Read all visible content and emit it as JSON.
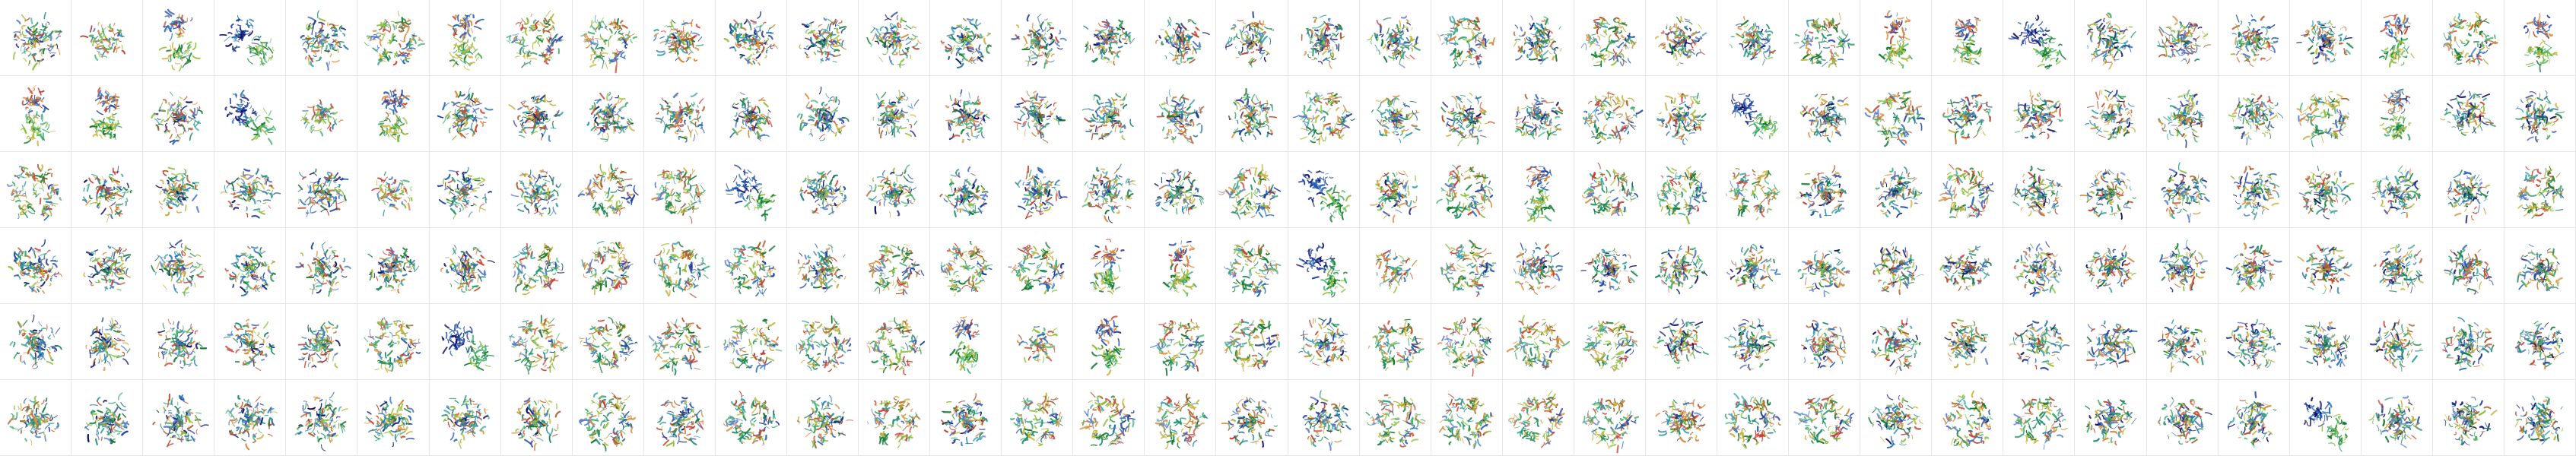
{
  "grid": {
    "rows": 6,
    "cols": 36,
    "label_text": "",
    "palette": [
      "#1f3f9f",
      "#2a6fb8",
      "#1c8c6a",
      "#3fb06f",
      "#8fbf3a",
      "#c8b23c",
      "#d9893a",
      "#c6402f",
      "#127a2f",
      "#5a7ad0",
      "#2f9fa6",
      "#b05a2a",
      "#10106a"
    ],
    "tile_kinds": [
      "mixed",
      "compact",
      "tall",
      "wing",
      "mixed",
      "ring6",
      "tall",
      "ring6",
      "ring6",
      "mixed",
      "mixed",
      "mixed",
      "mixed",
      "mixed",
      "mixed",
      "mixed",
      "mixed",
      "mixed",
      "mixed",
      "mixed",
      "ring6",
      "mixed",
      "ring6",
      "mixed",
      "mixed",
      "ring6",
      "tall",
      "tall",
      "wing",
      "mixed",
      "mixed",
      "mixed",
      "mixed",
      "tall",
      "ring6",
      "tall",
      "tall",
      "tall",
      "mixed",
      "wing",
      "compact",
      "tall",
      "mixed",
      "mixed",
      "mixed",
      "mixed",
      "mixed",
      "mixed",
      "mixed",
      "mixed",
      "mixed",
      "mixed",
      "mixed",
      "mixed",
      "ring6",
      "mixed",
      "mixed",
      "mixed",
      "ring6",
      "mixed",
      "wing",
      "mixed",
      "ring6",
      "mixed",
      "mixed",
      "mixed",
      "mixed",
      "mixed",
      "ring6",
      "tall",
      "mixed",
      "mixed",
      "ring6",
      "mixed",
      "mixed",
      "mixed",
      "mixed",
      "compact",
      "mixed",
      "mixed",
      "ring6",
      "ring6",
      "wing",
      "mixed",
      "mixed",
      "mixed",
      "mixed",
      "mixed",
      "mixed",
      "ring6",
      "wing",
      "mixed",
      "ring6",
      "tall",
      "ring6",
      "ring6",
      "ring6",
      "mixed",
      "mixed",
      "ring6",
      "mixed",
      "mixed",
      "mixed",
      "mixed",
      "mixed",
      "mixed",
      "mixed",
      "ring6",
      "mixed",
      "mixed",
      "mixed",
      "mixed",
      "mixed",
      "mixed",
      "mixed",
      "ring6",
      "ring6",
      "ring6",
      "ring6",
      "mixed",
      "ring6",
      "ring6",
      "ring6",
      "tall",
      "tall",
      "ring6",
      "wing",
      "compact",
      "ring6",
      "mixed",
      "mixed",
      "mixed",
      "mixed",
      "mixed",
      "mixed",
      "mixed",
      "mixed",
      "mixed",
      "mixed",
      "mixed",
      "mixed",
      "mixed",
      "mixed",
      "mixed",
      "mixed",
      "mixed",
      "mixed",
      "mixed",
      "mixed",
      "ring6",
      "wing",
      "ring6",
      "ring6",
      "ring6",
      "ring6",
      "ring6",
      "ring6",
      "tall",
      "compact",
      "tall",
      "ring6",
      "ring6",
      "mixed",
      "ring6",
      "ring6",
      "ring6",
      "ring6",
      "mixed",
      "mixed",
      "mixed",
      "mixed",
      "mixed",
      "mixed",
      "mixed",
      "mixed",
      "mixed",
      "mixed",
      "mixed",
      "mixed",
      "mixed",
      "mixed",
      "mixed",
      "mixed",
      "mixed",
      "mixed",
      "mixed",
      "mixed",
      "mixed",
      "ring6",
      "mixed",
      "ring6",
      "mixed",
      "ring6",
      "mixed",
      "ring6",
      "ring6",
      "ring6",
      "mixed",
      "mixed",
      "ring6",
      "ring6",
      "ring6",
      "ring6",
      "mixed",
      "ring6",
      "ring6",
      "mixed",
      "ring6",
      "ring6",
      "mixed",
      "mixed",
      "mixed",
      "wing",
      "mixed",
      "mixed",
      "mixed"
    ]
  }
}
